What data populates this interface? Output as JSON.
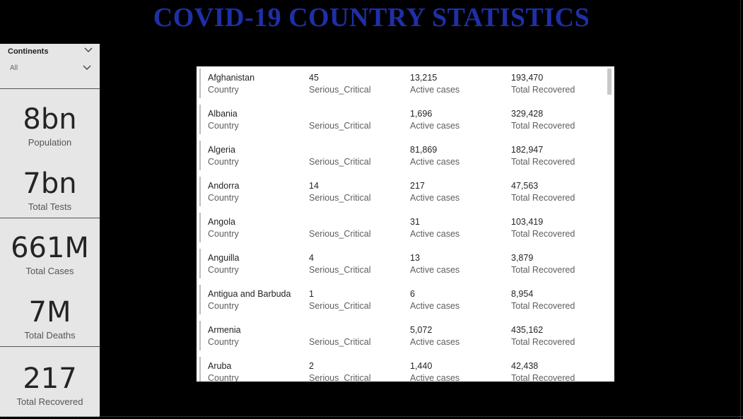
{
  "title": "COVID-19 COUNTRY STATISTICS",
  "slicer": {
    "label": "Continents",
    "value": "All",
    "icon": "chevron-down-icon"
  },
  "cards": [
    {
      "value": "8bn",
      "label": "Population"
    },
    {
      "value": "7bn",
      "label": "Total Tests"
    },
    {
      "value": "661M",
      "label": "Total Cases"
    },
    {
      "value": "7M",
      "label": "Total Deaths"
    },
    {
      "value": "217",
      "label": "Total Recovered"
    }
  ],
  "table": {
    "field_labels": [
      "Country",
      "Serious_Critical",
      "Active cases",
      "Total Recovered"
    ],
    "rows": [
      {
        "country": "Afghanistan",
        "serious": "45",
        "active": "13,215",
        "recovered": "193,470"
      },
      {
        "country": "Albania",
        "serious": "",
        "active": "1,696",
        "recovered": "329,428"
      },
      {
        "country": "Algeria",
        "serious": "",
        "active": "81,869",
        "recovered": "182,947"
      },
      {
        "country": "Andorra",
        "serious": "14",
        "active": "217",
        "recovered": "47,563"
      },
      {
        "country": "Angola",
        "serious": "",
        "active": "31",
        "recovered": "103,419"
      },
      {
        "country": "Anguilla",
        "serious": "4",
        "active": "13",
        "recovered": "3,879"
      },
      {
        "country": "Antigua and Barbuda",
        "serious": "1",
        "active": "6",
        "recovered": "8,954"
      },
      {
        "country": "Armenia",
        "serious": "",
        "active": "5,072",
        "recovered": "435,162"
      },
      {
        "country": "Aruba",
        "serious": "2",
        "active": "1,440",
        "recovered": "42,438"
      }
    ]
  }
}
